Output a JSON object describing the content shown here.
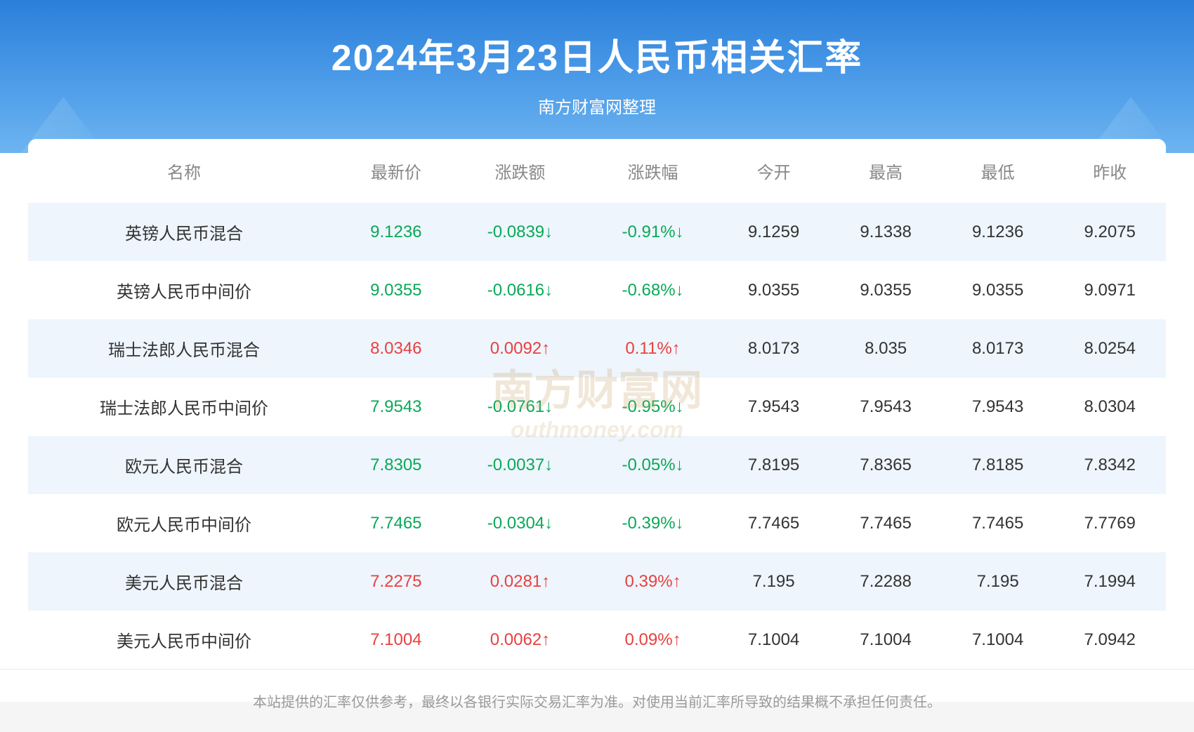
{
  "header": {
    "title": "2024年3月23日人民币相关汇率",
    "subtitle": "南方财富网整理",
    "bg_gradient_top": "#2b7fd9",
    "bg_gradient_mid": "#4a9ae8",
    "bg_gradient_bottom": "#6db4f0",
    "title_color": "#ffffff",
    "title_fontsize": 52
  },
  "table": {
    "columns": [
      "名称",
      "最新价",
      "涨跌额",
      "涨跌幅",
      "今开",
      "最高",
      "最低",
      "昨收"
    ],
    "header_color": "#888888",
    "header_fontsize": 24,
    "cell_fontsize": 24,
    "row_odd_bg": "#eef5fc",
    "row_even_bg": "#ffffff",
    "up_color": "#e84040",
    "down_color": "#0aa858",
    "text_color": "#333333",
    "rows": [
      {
        "name": "英镑人民币混合",
        "latest": "9.1236",
        "change": "-0.0839↓",
        "pct": "-0.91%↓",
        "open": "9.1259",
        "high": "9.1338",
        "low": "9.1236",
        "prev": "9.2075",
        "dir": "down"
      },
      {
        "name": "英镑人民币中间价",
        "latest": "9.0355",
        "change": "-0.0616↓",
        "pct": "-0.68%↓",
        "open": "9.0355",
        "high": "9.0355",
        "low": "9.0355",
        "prev": "9.0971",
        "dir": "down"
      },
      {
        "name": "瑞士法郎人民币混合",
        "latest": "8.0346",
        "change": "0.0092↑",
        "pct": "0.11%↑",
        "open": "8.0173",
        "high": "8.035",
        "low": "8.0173",
        "prev": "8.0254",
        "dir": "up"
      },
      {
        "name": "瑞士法郎人民币中间价",
        "latest": "7.9543",
        "change": "-0.0761↓",
        "pct": "-0.95%↓",
        "open": "7.9543",
        "high": "7.9543",
        "low": "7.9543",
        "prev": "8.0304",
        "dir": "down"
      },
      {
        "name": "欧元人民币混合",
        "latest": "7.8305",
        "change": "-0.0037↓",
        "pct": "-0.05%↓",
        "open": "7.8195",
        "high": "7.8365",
        "low": "7.8185",
        "prev": "7.8342",
        "dir": "down"
      },
      {
        "name": "欧元人民币中间价",
        "latest": "7.7465",
        "change": "-0.0304↓",
        "pct": "-0.39%↓",
        "open": "7.7465",
        "high": "7.7465",
        "low": "7.7465",
        "prev": "7.7769",
        "dir": "down"
      },
      {
        "name": "美元人民币混合",
        "latest": "7.2275",
        "change": "0.0281↑",
        "pct": "0.39%↑",
        "open": "7.195",
        "high": "7.2288",
        "low": "7.195",
        "prev": "7.1994",
        "dir": "up"
      },
      {
        "name": "美元人民币中间价",
        "latest": "7.1004",
        "change": "0.0062↑",
        "pct": "0.09%↑",
        "open": "7.1004",
        "high": "7.1004",
        "low": "7.1004",
        "prev": "7.0942",
        "dir": "up"
      }
    ]
  },
  "watermark": {
    "main": "南方财富网",
    "sub": "outhmoney.com",
    "color": "rgba(200,160,100,0.25)"
  },
  "footer": {
    "text": "本站提供的汇率仅供参考，最终以各银行实际交易汇率为准。对使用当前汇率所导致的结果概不承担任何责任。",
    "color": "#999999",
    "fontsize": 20
  }
}
